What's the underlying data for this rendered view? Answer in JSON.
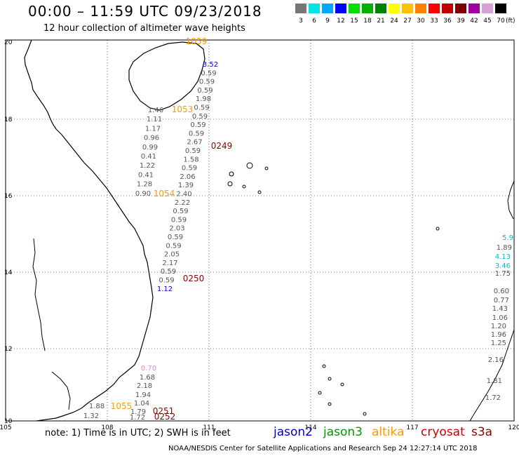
{
  "title": "00:00 – 11:59 UTC 09/23/2018",
  "subtitle": "12 hour collection of altimeter wave heights",
  "legend": {
    "colors": [
      "#777777",
      "#00e5e5",
      "#00a8ff",
      "#0000ff",
      "#00e000",
      "#00b000",
      "#008000",
      "#ffff00",
      "#ffc000",
      "#ff8000",
      "#ff0000",
      "#c00000",
      "#800000",
      "#a000a0",
      "#d8a0d8",
      "#000000"
    ],
    "labels": [
      "3",
      "6",
      "9",
      "12",
      "15",
      "18",
      "21",
      "24",
      "27",
      "30",
      "33",
      "36",
      "39",
      "42",
      "45",
      "70"
    ],
    "unit": "(ft)"
  },
  "axes": {
    "lon_labels": [
      "105",
      "108",
      "111",
      "114",
      "117",
      "120"
    ],
    "lat_labels": [
      "20",
      "18",
      "16",
      "14",
      "12",
      "10"
    ]
  },
  "passes": [
    {
      "label": "1059",
      "color": "#ff9900"
    },
    {
      "label": "1053",
      "color": "#ff9900"
    },
    {
      "label": "0249",
      "color": "#8b0000"
    },
    {
      "label": "1054",
      "color": "#ff9900"
    },
    {
      "label": "0250",
      "color": "#8b0000"
    },
    {
      "label": "1055",
      "color": "#ff9900"
    },
    {
      "label": "0251",
      "color": "#8b0000"
    },
    {
      "label": "0252",
      "color": "#8b0000"
    }
  ],
  "swh_track": [
    "3.52",
    "0.59",
    "0.59",
    "0.59",
    "1.98",
    "0.59",
    "0.59",
    "0.59",
    "0.59",
    "2.67",
    "0.59",
    "1.58",
    "0.59",
    "2.06",
    "1.39",
    "2.40",
    "2.22",
    "0.59",
    "0.59",
    "2.03",
    "0.59",
    "0.59",
    "2.05",
    "2.17",
    "0.59",
    "0.59",
    "1.12"
  ],
  "swh_track2": [
    "1.46",
    "1.11",
    "1.17",
    "0.96",
    "0.99",
    "0.41",
    "1.22",
    "0.41",
    "1.28",
    "0.90"
  ],
  "swh_south": [
    "0.70",
    "1.68",
    "2.18",
    "1.94",
    "1.04",
    "1.88",
    "1.32",
    "1.79",
    "1.72"
  ],
  "swh_east": [
    "5.9",
    "1.89",
    "4.13",
    "3.46",
    "1.75",
    "0.60",
    "0.77",
    "1.43",
    "1.06",
    "1.20",
    "1.96",
    "1.25",
    "2.16",
    "1.81",
    "1.72"
  ],
  "footer": {
    "note": "note: 1) Time is in UTC; 2) SWH is in feet",
    "satellites": [
      {
        "name": "jason2",
        "color": "#0000cc"
      },
      {
        "name": "jason3",
        "color": "#009900"
      },
      {
        "name": "altika",
        "color": "#ff9900"
      },
      {
        "name": "cryosat",
        "color": "#cc0000"
      },
      {
        "name": "s3a",
        "color": "#8b0000"
      }
    ],
    "credit": "NOAA/NESDIS Center for Satellite Applications and Research   Sep 24 12:27:14 UTC 2018"
  }
}
